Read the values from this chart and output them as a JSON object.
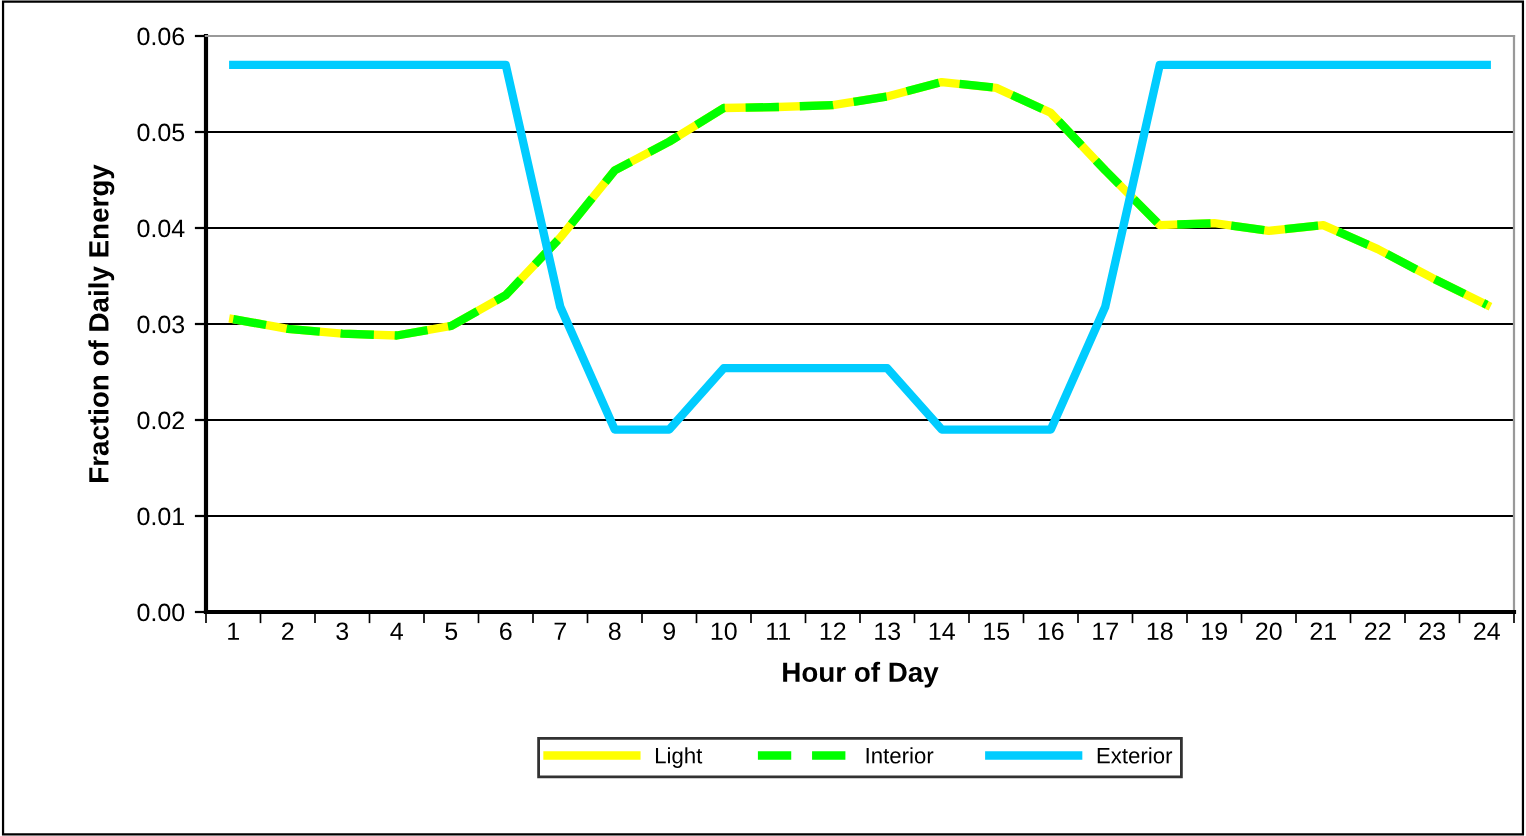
{
  "chart_data": {
    "type": "line",
    "xlabel": "Hour of Day",
    "ylabel": "Fraction of Daily Energy",
    "categories": [
      "1",
      "2",
      "3",
      "4",
      "5",
      "6",
      "7",
      "8",
      "9",
      "10",
      "11",
      "12",
      "13",
      "14",
      "15",
      "16",
      "17",
      "18",
      "19",
      "20",
      "21",
      "22",
      "23",
      "24"
    ],
    "series": [
      {
        "name": "Light",
        "color": "#ffff00",
        "line_style": "solid",
        "values": [
          0.0305,
          0.0295,
          0.029,
          0.0288,
          0.0298,
          0.033,
          0.039,
          0.046,
          0.049,
          0.0525,
          0.0526,
          0.0528,
          0.0537,
          0.0552,
          0.0546,
          0.052,
          0.046,
          0.0403,
          0.0405,
          0.0397,
          0.0403,
          0.0378,
          0.0348,
          0.032
        ]
      },
      {
        "name": "Interior",
        "color": "#00ff00",
        "line_style": "dashed",
        "values": [
          0.0305,
          0.0295,
          0.029,
          0.0288,
          0.0298,
          0.033,
          0.039,
          0.046,
          0.049,
          0.0525,
          0.0526,
          0.0528,
          0.0537,
          0.0552,
          0.0546,
          0.052,
          0.046,
          0.0403,
          0.0405,
          0.0397,
          0.0403,
          0.0378,
          0.0348,
          0.032
        ]
      },
      {
        "name": "Exterior",
        "color": "#00ccff",
        "line_style": "solid",
        "values": [
          0.057,
          0.057,
          0.057,
          0.057,
          0.057,
          0.057,
          0.0318,
          0.019,
          0.019,
          0.0254,
          0.0254,
          0.0254,
          0.0254,
          0.019,
          0.019,
          0.019,
          0.0318,
          0.057,
          0.057,
          0.057,
          0.057,
          0.057,
          0.057,
          0.057
        ]
      }
    ],
    "ylim": [
      0,
      0.06
    ],
    "yticks": [
      {
        "value": 0,
        "label": "0.00"
      },
      {
        "value": 0.01,
        "label": "0.01"
      },
      {
        "value": 0.02,
        "label": "0.02"
      },
      {
        "value": 0.03,
        "label": "0.03"
      },
      {
        "value": 0.04,
        "label": "0.04"
      },
      {
        "value": 0.05,
        "label": "0.05"
      },
      {
        "value": 0.06,
        "label": "0.06"
      }
    ],
    "grid": "y",
    "legend": "bottom",
    "marker": "none"
  }
}
